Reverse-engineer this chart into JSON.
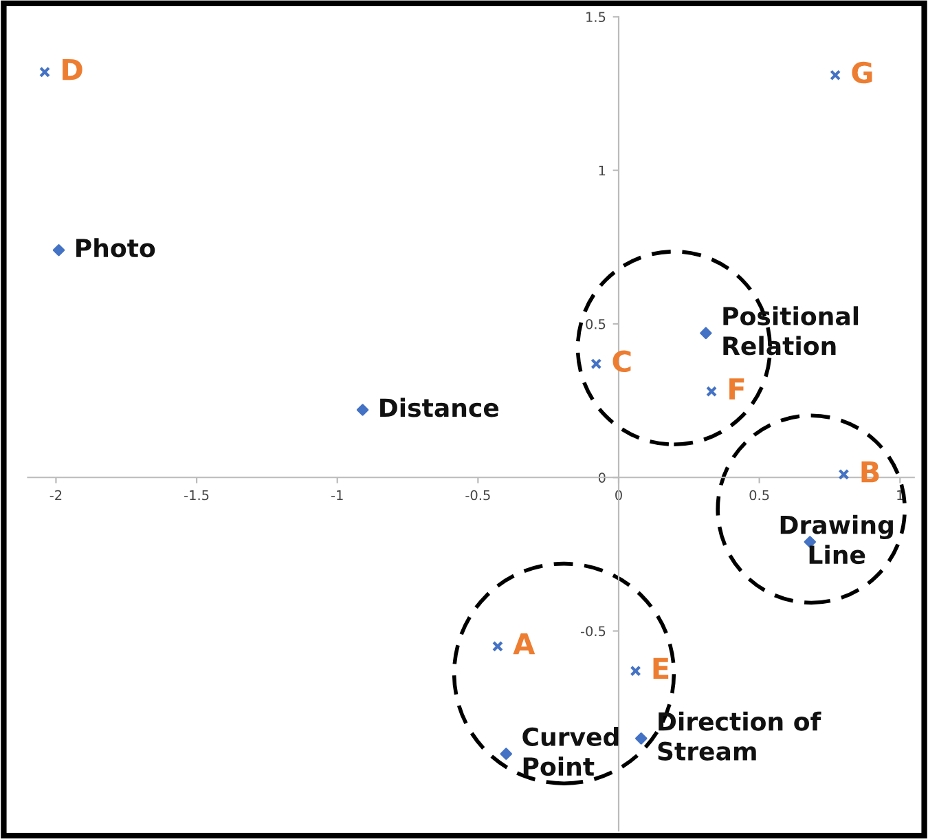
{
  "chart_data": {
    "type": "scatter",
    "xlim": [
      -2.1,
      1.05
    ],
    "ylim": [
      -1.15,
      1.5
    ],
    "xticks": [
      -2,
      -1.5,
      -1,
      -0.5,
      0,
      0.5,
      1
    ],
    "yticks": [
      -0.5,
      0,
      0.5,
      1,
      1.5
    ],
    "grid": false,
    "legend": false,
    "series": [
      {
        "color": "#4472c4",
        "marker": "cross",
        "x": [
          -0.43,
          0.8,
          -0.08,
          -2.04,
          0.06,
          0.33,
          0.77
        ],
        "values": [
          -0.55,
          0.01,
          0.37,
          1.32,
          -0.63,
          0.28,
          1.31
        ],
        "value_labels": [
          "A",
          "B",
          "C",
          "D",
          "E",
          "F",
          "G"
        ]
      },
      {
        "color": "#4472c4",
        "marker": "diamond",
        "x": [
          -1.99,
          -0.91,
          0.31,
          0.68,
          -0.4,
          0.08
        ],
        "values": [
          0.74,
          0.22,
          0.47,
          -0.21,
          -0.9,
          -0.85
        ],
        "value_labels": [
          "Photo",
          "Distance",
          "Positional\nRelation",
          "Drawing\nLine",
          "Curved\nPoint",
          "Direction of\nStream"
        ]
      }
    ]
  }
}
